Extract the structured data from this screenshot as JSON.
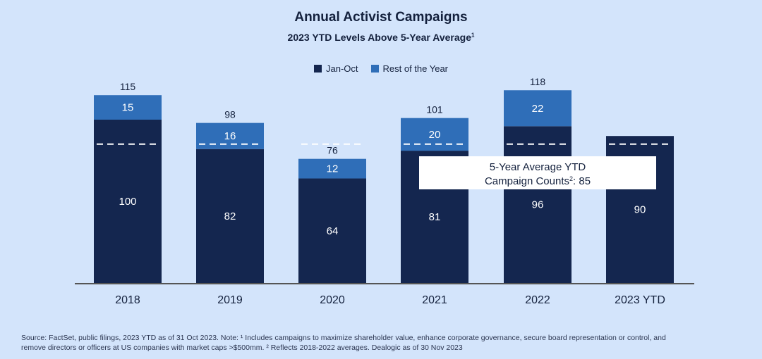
{
  "colors": {
    "background": "#d3e4fb",
    "jan_oct": "#14264f",
    "rest_of_year": "#2f6eb8",
    "text": "#14213d",
    "axis": "#555555",
    "average_line": "#ffffff",
    "annotation_box": "#ffffff"
  },
  "chart_data": {
    "type": "bar",
    "stacked": true,
    "title": "Annual Activist Campaigns",
    "subtitle": "2023 YTD Levels Above 5-Year Average",
    "subtitle_footnote_marker": "1",
    "categories": [
      "2018",
      "2019",
      "2020",
      "2021",
      "2022",
      "2023 YTD"
    ],
    "series": [
      {
        "name": "Jan-Oct",
        "values": [
          100,
          82,
          64,
          81,
          96,
          90
        ]
      },
      {
        "name": "Rest of the Year",
        "values": [
          15,
          16,
          12,
          20,
          22,
          null
        ]
      }
    ],
    "totals": [
      115,
      98,
      76,
      101,
      118,
      null
    ],
    "reference_line": {
      "value": 85,
      "style": "dashed"
    },
    "annotation": {
      "line1": "5-Year Average YTD",
      "line2_prefix": "Campaign Counts",
      "line2_marker": "2",
      "line2_suffix": ": 85"
    },
    "ylim": [
      0,
      125
    ],
    "grid": false,
    "legend_position": "top-center"
  },
  "footnote": {
    "line1": "Source: FactSet, public filings, 2023 YTD as of 31 Oct 2023. Note: ¹ Includes campaigns to maximize shareholder value, enhance corporate governance, secure board representation or control, and",
    "line2": "remove directors or officers at US companies with market caps >$500mm. ² Reflects 2018-2022 averages. Dealogic as of 30 Nov 2023"
  }
}
